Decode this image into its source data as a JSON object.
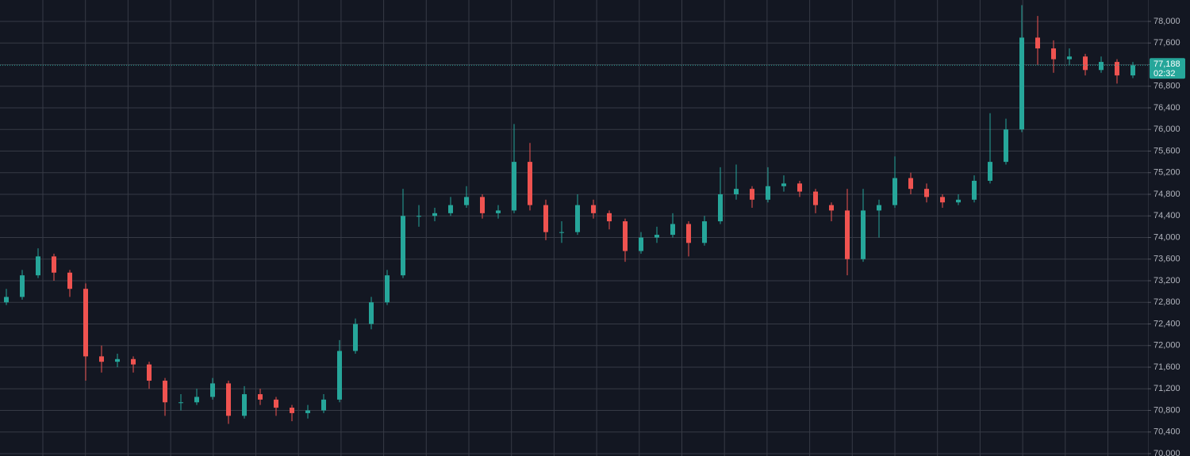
{
  "chart_data": {
    "type": "candlestick",
    "up_color": "#26a69a",
    "down_color": "#ef5350",
    "grid": true,
    "ylim": [
      69956,
      78396
    ],
    "yticks": [
      {
        "value": 70000,
        "label": "70,000"
      },
      {
        "value": 70400,
        "label": "70,400"
      },
      {
        "value": 70800,
        "label": "70,800"
      },
      {
        "value": 71200,
        "label": "71,200"
      },
      {
        "value": 71600,
        "label": "71,600"
      },
      {
        "value": 72000,
        "label": "72,000"
      },
      {
        "value": 72400,
        "label": "72,400"
      },
      {
        "value": 72800,
        "label": "72,800"
      },
      {
        "value": 73200,
        "label": "73,200"
      },
      {
        "value": 73600,
        "label": "73,600"
      },
      {
        "value": 74000,
        "label": "74,000"
      },
      {
        "value": 74400,
        "label": "74,400"
      },
      {
        "value": 74800,
        "label": "74,800"
      },
      {
        "value": 75200,
        "label": "75,200"
      },
      {
        "value": 75600,
        "label": "75,600"
      },
      {
        "value": 76000,
        "label": "76,000"
      },
      {
        "value": 76400,
        "label": "76,400"
      },
      {
        "value": 76800,
        "label": "76,800"
      },
      {
        "value": 77200,
        "label": "77,200"
      },
      {
        "value": 77600,
        "label": "77,600"
      },
      {
        "value": 78000,
        "label": "78,000"
      }
    ],
    "open": [
      72800,
      72900,
      73300,
      73650,
      73350,
      73050,
      71800,
      71700,
      71750,
      71650,
      71350,
      70950,
      70950,
      71050,
      71300,
      70700,
      71100,
      71000,
      70850,
      70750,
      70800,
      71000,
      71900,
      72400,
      72800,
      73300,
      74400,
      74400,
      74450,
      74600,
      74750,
      74450,
      74500,
      75400,
      74600,
      74100,
      74100,
      74600,
      74450,
      74300,
      73750,
      74000,
      74050,
      74250,
      73900,
      74300,
      74800,
      74900,
      74700,
      74950,
      75000,
      74850,
      74600,
      74500,
      73600,
      74500,
      74600,
      75100,
      74900,
      74750,
      74650,
      74700,
      75050,
      75400,
      76000,
      77700,
      77500,
      77300,
      77350,
      77100,
      77250,
      77000
    ],
    "high": [
      73050,
      73400,
      73800,
      73700,
      73400,
      73150,
      72000,
      71850,
      71800,
      71700,
      71400,
      71100,
      71200,
      71400,
      71350,
      71250,
      71200,
      71050,
      70900,
      70900,
      71100,
      72100,
      72500,
      72900,
      73400,
      74900,
      74600,
      74550,
      74750,
      74950,
      74800,
      74600,
      76100,
      75750,
      74700,
      74300,
      74800,
      74700,
      74500,
      74350,
      74100,
      74200,
      74450,
      74300,
      74400,
      75300,
      75350,
      74950,
      75300,
      75150,
      75050,
      74900,
      74650,
      74900,
      74900,
      74700,
      75500,
      75200,
      75000,
      74800,
      74800,
      75150,
      76300,
      76200,
      78300,
      78100,
      77650,
      77500,
      77400,
      77350,
      77300,
      77250
    ],
    "low": [
      72750,
      72850,
      73250,
      73200,
      72900,
      71350,
      71500,
      71600,
      71500,
      71200,
      70700,
      70800,
      70900,
      71000,
      70550,
      70650,
      70900,
      70700,
      70600,
      70650,
      70750,
      70950,
      71850,
      72300,
      72750,
      73250,
      74200,
      74300,
      74400,
      74550,
      74350,
      74350,
      74450,
      74500,
      73950,
      73900,
      74050,
      74350,
      74150,
      73550,
      73700,
      73900,
      74000,
      73650,
      73850,
      74250,
      74700,
      74550,
      74650,
      74850,
      74750,
      74450,
      74300,
      73300,
      73550,
      74000,
      74550,
      74800,
      74650,
      74550,
      74600,
      74650,
      75000,
      75350,
      75950,
      77200,
      77050,
      77200,
      77000,
      77050,
      76850,
      76950
    ],
    "close": [
      72900,
      73300,
      73650,
      73350,
      73050,
      71800,
      71700,
      71750,
      71650,
      71350,
      70950,
      70950,
      71050,
      71300,
      70700,
      71100,
      71000,
      70850,
      70750,
      70800,
      71000,
      71900,
      72400,
      72800,
      73300,
      74400,
      74400,
      74450,
      74600,
      74750,
      74450,
      74500,
      75400,
      74600,
      74100,
      74100,
      74600,
      74450,
      74300,
      73750,
      74000,
      74050,
      74250,
      73900,
      74300,
      74800,
      74900,
      74700,
      74950,
      75000,
      74850,
      74600,
      74500,
      73600,
      74500,
      74600,
      75100,
      74900,
      74750,
      74650,
      74700,
      75050,
      75400,
      76000,
      77700,
      77500,
      77300,
      77350,
      77100,
      77250,
      77000,
      77188
    ],
    "last_price": {
      "value": 77188,
      "label": "77,188"
    },
    "countdown": "02:32"
  }
}
